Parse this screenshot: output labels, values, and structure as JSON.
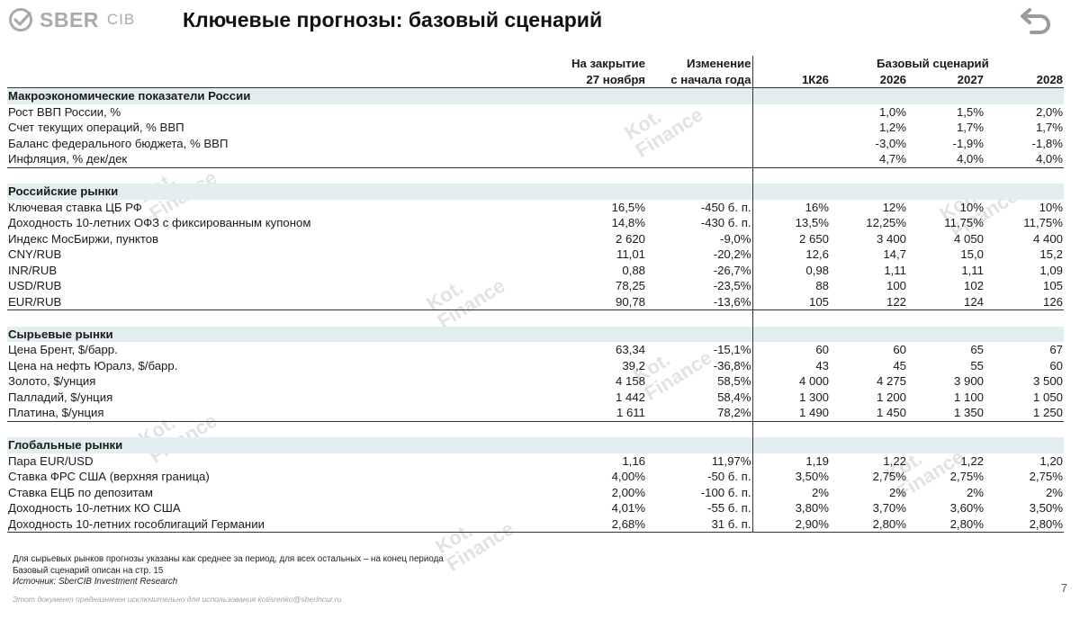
{
  "header": {
    "logo_text": "SBER",
    "logo_sub": "CIB",
    "title": "Ключевые прогнозы: базовый сценарий",
    "back_icon": "back-arrow-icon"
  },
  "watermark": {
    "line1": "Kot.",
    "line2": "Finance"
  },
  "table": {
    "header_row1": {
      "close": "На закрытие",
      "change": "Изменение",
      "scenario": "Базовый сценарий"
    },
    "header_row2": {
      "close": "27 ноября",
      "change": "с начала года",
      "c1": "1К26",
      "c2": "2026",
      "c3": "2027",
      "c4": "2028"
    },
    "sections": [
      {
        "title": "Макроэкономические показатели России",
        "rows": [
          {
            "name": "Рост ВВП России, %",
            "close": "",
            "change": "",
            "v1": "",
            "v2": "1,0%",
            "v3": "1,5%",
            "v4": "2,0%"
          },
          {
            "name": "Счет текущих операций, % ВВП",
            "close": "",
            "change": "",
            "v1": "",
            "v2": "1,2%",
            "v3": "1,7%",
            "v4": "1,7%"
          },
          {
            "name": "Баланс федерального бюджета, % ВВП",
            "close": "",
            "change": "",
            "v1": "",
            "v2": "-3,0%",
            "v3": "-1,9%",
            "v4": "-1,8%"
          },
          {
            "name": "Инфляция, % дек/дек",
            "close": "",
            "change": "",
            "v1": "",
            "v2": "4,7%",
            "v3": "4,0%",
            "v4": "4,0%"
          }
        ]
      },
      {
        "title": "Российские рынки",
        "rows": [
          {
            "name": "Ключевая ставка ЦБ РФ",
            "close": "16,5%",
            "change": "-450 б. п.",
            "v1": "16%",
            "v2": "12%",
            "v3": "10%",
            "v4": "10%"
          },
          {
            "name": "Доходность 10-летних ОФЗ с фиксированным купоном",
            "close": "14,8%",
            "change": "-430 б. п.",
            "v1": "13,5%",
            "v2": "12,25%",
            "v3": "11,75%",
            "v4": "11,75%"
          },
          {
            "name": "Индекс МосБиржи, пунктов",
            "close": "2 620",
            "change": "-9,0%",
            "v1": "2 650",
            "v2": "3 400",
            "v3": "4 050",
            "v4": "4 400"
          },
          {
            "name": "CNY/RUB",
            "close": "11,01",
            "change": "-20,2%",
            "v1": "12,6",
            "v2": "14,7",
            "v3": "15,0",
            "v4": "15,2"
          },
          {
            "name": "INR/RUB",
            "close": "0,88",
            "change": "-26,7%",
            "v1": "0,98",
            "v2": "1,11",
            "v3": "1,11",
            "v4": "1,09"
          },
          {
            "name": "USD/RUB",
            "close": "78,25",
            "change": "-23,5%",
            "v1": "88",
            "v2": "100",
            "v3": "102",
            "v4": "105"
          },
          {
            "name": "EUR/RUB",
            "close": "90,78",
            "change": "-13,6%",
            "v1": "105",
            "v2": "122",
            "v3": "124",
            "v4": "126"
          }
        ]
      },
      {
        "title": "Сырьевые рынки",
        "rows": [
          {
            "name": "Цена Брент, $/барр.",
            "close": "63,34",
            "change": "-15,1%",
            "v1": "60",
            "v2": "60",
            "v3": "65",
            "v4": "67"
          },
          {
            "name": "Цена на нефть Юралз, $/барр.",
            "close": "39,2",
            "change": "-36,8%",
            "v1": "43",
            "v2": "45",
            "v3": "55",
            "v4": "60"
          },
          {
            "name": "Золото, $/унция",
            "close": "4 158",
            "change": "58,5%",
            "v1": "4 000",
            "v2": "4 275",
            "v3": "3 900",
            "v4": "3 500"
          },
          {
            "name": "Палладий, $/унция",
            "close": "1 442",
            "change": "58,4%",
            "v1": "1 300",
            "v2": "1 200",
            "v3": "1 100",
            "v4": "1 050"
          },
          {
            "name": "Платина, $/унция",
            "close": "1 611",
            "change": "78,2%",
            "v1": "1 490",
            "v2": "1 450",
            "v3": "1 350",
            "v4": "1 250"
          }
        ]
      },
      {
        "title": "Глобальные рынки",
        "rows": [
          {
            "name": "Пара EUR/USD",
            "close": "1,16",
            "change": "11,97%",
            "v1": "1,19",
            "v2": "1,22",
            "v3": "1,22",
            "v4": "1,20"
          },
          {
            "name": "Ставка ФРС США (верхняя граница)",
            "close": "4,00%",
            "change": "-50 б. п.",
            "v1": "3,50%",
            "v2": "2,75%",
            "v3": "2,75%",
            "v4": "2,75%"
          },
          {
            "name": "Ставка ЕЦБ по депозитам",
            "close": "2,00%",
            "change": "-100 б. п.",
            "v1": "2%",
            "v2": "2%",
            "v3": "2%",
            "v4": "2%"
          },
          {
            "name": "Доходность 10-летних КО США",
            "close": "4,01%",
            "change": "-55 б. п.",
            "v1": "3,80%",
            "v2": "3,70%",
            "v3": "3,60%",
            "v4": "3,50%"
          },
          {
            "name": "Доходность 10-летних гособлигаций Германии",
            "close": "2,68%",
            "change": "31 б. п.",
            "v1": "2,90%",
            "v2": "2,80%",
            "v3": "2,80%",
            "v4": "2,80%"
          }
        ]
      }
    ]
  },
  "footnotes": {
    "line1": "Для сырьевых рынков прогнозы указаны как среднее за период, для всех остальных – на конец периода",
    "line2": "Базовый сценарий описан на стр. 15",
    "source": "Источник: SberCIB Investment Research"
  },
  "disclaimer": "Этот документ предназначен исключительно для использования kotisrenko@sberincur.ru",
  "page_number": "7",
  "colors": {
    "section_bg": "#e3eef0",
    "underline": "#d40000",
    "logo_grey": "#a7abad"
  }
}
